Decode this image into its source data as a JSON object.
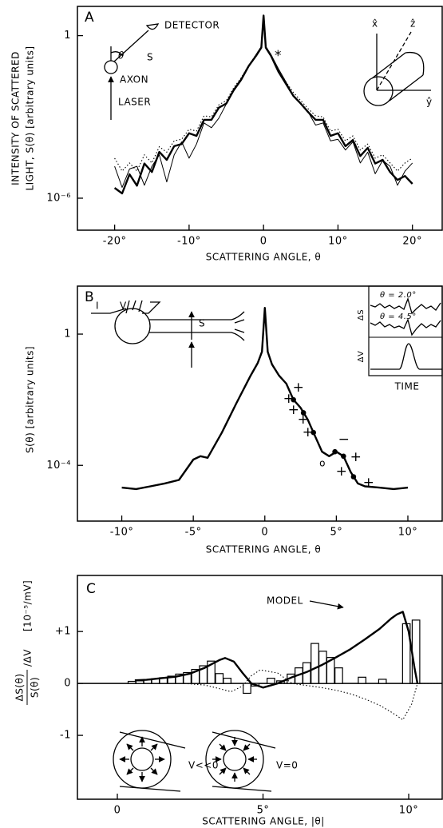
{
  "chart_data": [
    {
      "type": "line",
      "label": "A",
      "xlabel": "SCATTERING ANGLE, θ",
      "ylabel": [
        "INTENSITY OF SCATTERED",
        "LIGHT, S(θ) [arbitrary units]"
      ],
      "annotations": [
        "DETECTOR",
        "θ",
        "S",
        "AXON",
        "LASER",
        "*",
        "x̂",
        "ẑ",
        "ŷ"
      ],
      "log_y": true,
      "xlim": [
        -25,
        24
      ],
      "ylim": [
        6.6e-08,
        12
      ],
      "xticks": [
        {
          "value": -20,
          "label": "-20°"
        },
        {
          "value": -10,
          "label": "-10°"
        },
        0,
        {
          "value": 10,
          "label": "10°"
        },
        {
          "value": 20,
          "label": "20°"
        }
      ],
      "yticks": [
        {
          "value": 1e-06,
          "label": "10⁻⁶"
        },
        1
      ],
      "x": [
        -20,
        -19,
        -18,
        -17,
        -16,
        -15,
        -14,
        -13,
        -12,
        -11,
        -10,
        -9,
        -8,
        -7,
        -6,
        -5,
        -4,
        -3,
        -2,
        -1,
        -0.3,
        0,
        0.3,
        1,
        2,
        3,
        4,
        5,
        6,
        7,
        8,
        9,
        10,
        11,
        12,
        13,
        14,
        15,
        16,
        17,
        18,
        19,
        20
      ],
      "series": [
        {
          "style": "dotted",
          "color": "#000000",
          "values": [
            3e-05,
            1e-05,
            2e-05,
            1e-05,
            4e-05,
            2e-05,
            8e-05,
            5e-05,
            0.00013,
            0.00015,
            0.00035,
            0.0003,
            0.0011,
            0.001,
            0.0028,
            0.004,
            0.012,
            0.028,
            0.08,
            0.2,
            0.4,
            5.5,
            0.4,
            0.2,
            0.055,
            0.02,
            0.008,
            0.004,
            0.002,
            0.0011,
            0.001,
            0.0003,
            0.00035,
            0.00013,
            0.0002,
            6e-05,
            0.0001,
            3e-05,
            4e-05,
            2e-05,
            1e-05,
            2e-05,
            3e-05
          ]
        },
        {
          "style": "thin",
          "color": "#000000",
          "values": [
            1.5e-05,
            2.5e-06,
            1.2e-05,
            1.5e-05,
            3e-06,
            1.5e-05,
            4e-05,
            4e-06,
            4e-05,
            0.00012,
            3e-05,
            0.0001,
            0.0006,
            0.0004,
            0.0009,
            0.003,
            0.009,
            0.022,
            0.07,
            0.2,
            0.4,
            5.5,
            0.4,
            0.2,
            0.06,
            0.02,
            0.006,
            0.003,
            0.0015,
            0.0005,
            0.0006,
            0.00013,
            0.00015,
            6e-05,
            0.00012,
            2e-05,
            5e-05,
            8e-06,
            2.5e-05,
            1.5e-05,
            3e-06,
            1e-05,
            2e-05
          ]
        },
        {
          "style": "thick",
          "color": "#000000",
          "values": [
            2.4e-06,
            1.5e-06,
            7.6e-06,
            2.9e-06,
            1.9e-05,
            9.3e-06,
            5.1e-05,
            2.6e-05,
            8.3e-05,
            0.0001,
            0.00025,
            0.0002,
            0.00078,
            0.00078,
            0.0022,
            0.0031,
            0.01,
            0.024,
            0.075,
            0.18,
            0.36,
            5.5,
            0.36,
            0.18,
            0.047,
            0.017,
            0.006,
            0.0031,
            0.0015,
            0.00078,
            0.00078,
            0.0002,
            0.00025,
            8.3e-05,
            0.00014,
            3.6e-05,
            7.2e-05,
            1.9e-05,
            2.6e-05,
            9.3e-06,
            4.7e-06,
            6.6e-06,
            3.4e-06
          ]
        }
      ]
    },
    {
      "type": "line",
      "label": "B",
      "xlabel": "SCATTERING ANGLE, θ",
      "ylabel": [
        "S(θ) [arbitrary units]"
      ],
      "annotations": [
        "I",
        "V",
        "S",
        "θ = 2.0°",
        "θ = 4.5°",
        "ΔS",
        "ΔV",
        "TIME",
        "+",
        "+",
        "+",
        "+",
        "+",
        "−",
        "o",
        "+",
        "+",
        "+"
      ],
      "log_y": true,
      "xlim": [
        -13.1,
        12.4
      ],
      "ylim": [
        2e-06,
        29
      ],
      "xticks": [
        {
          "value": -10,
          "label": "-10°"
        },
        {
          "value": -5,
          "label": "-5°"
        },
        0,
        {
          "value": 5,
          "label": "5°"
        },
        {
          "value": 10,
          "label": "10°"
        }
      ],
      "yticks": [
        {
          "value": 0.0001,
          "label": "10⁻⁴"
        },
        1
      ],
      "series": [
        {
          "style": "thick",
          "color": "#000000",
          "x": [
            -10,
            -9,
            -8,
            -7,
            -6,
            -5,
            -4.5,
            -4,
            -3,
            -2,
            -1,
            -0.5,
            -0.2,
            0,
            0.2,
            0.5,
            1,
            1.5,
            2,
            2.5,
            3,
            3.5,
            4,
            4.5,
            5,
            5.5,
            6,
            6.5,
            7,
            8,
            9,
            10
          ],
          "values": [
            2.1e-05,
            1.9e-05,
            2.3e-05,
            2.8e-05,
            3.6e-05,
            0.00015,
            0.00019,
            0.00017,
            0.001,
            0.0076,
            0.054,
            0.13,
            0.29,
            6.3,
            0.29,
            0.12,
            0.054,
            0.031,
            0.01,
            0.0057,
            0.0025,
            0.0008,
            0.00026,
            0.00019,
            0.00026,
            0.00019,
            6.3e-05,
            2.8e-05,
            2.3e-05,
            2.1e-05,
            1.9e-05,
            2.1e-05
          ]
        },
        {
          "style": "dots",
          "color": "#000000",
          "x": [
            2,
            2.7,
            3.4,
            4.9,
            5.5,
            6.2
          ],
          "values": [
            0.01,
            0.004,
            0.001,
            0.00026,
            0.00019,
            4.5e-05
          ]
        }
      ]
    },
    {
      "type": "bar",
      "label": "C",
      "xlabel": "SCATTERING ANGLE, |θ|",
      "ylabel": [
        "ΔS(θ)",
        "S(θ)",
        "/ΔV",
        "[10⁻⁵/mV]"
      ],
      "annotations": [
        "MODEL",
        "V<<0",
        "V=0"
      ],
      "xlim": [
        -1.37,
        11.15
      ],
      "ylim": [
        -2.23,
        2.08
      ],
      "xticks": [
        0,
        {
          "value": 5,
          "label": "5°"
        },
        {
          "value": 10,
          "label": "10°"
        }
      ],
      "yticks": [
        -1,
        0,
        {
          "value": 1,
          "label": "+1"
        }
      ],
      "bars": {
        "color": "#ffffff",
        "x": [
          0.5,
          0.77,
          1.04,
          1.31,
          1.58,
          1.86,
          2.13,
          2.4,
          2.68,
          2.95,
          3.22,
          3.5,
          3.77,
          4.45,
          4.73,
          5.27,
          5.6,
          5.96,
          6.23,
          6.5,
          6.78,
          7.05,
          7.32,
          7.6,
          8.4,
          9.1,
          9.92,
          10.25
        ],
        "values": [
          0.04,
          0.05,
          0.07,
          0.09,
          0.11,
          0.14,
          0.18,
          0.21,
          0.27,
          0.34,
          0.43,
          0.19,
          0.1,
          -0.19,
          -0.05,
          0.1,
          0.05,
          0.18,
          0.3,
          0.4,
          0.77,
          0.62,
          0.5,
          0.3,
          0.12,
          0.08,
          1.15,
          1.22
        ]
      },
      "series": [
        {
          "style": "dotted",
          "color": "#000000",
          "x": [
            2.3,
            3,
            3.5,
            3.9,
            4.3,
            4.6,
            4.9,
            5.5,
            6,
            6.5,
            7,
            7.5,
            8,
            8.5,
            9,
            9.4,
            9.8,
            10.1,
            10.3,
            10.6,
            11
          ],
          "values": [
            0,
            -0.03,
            -0.1,
            -0.16,
            -0.05,
            0.15,
            0.26,
            0.2,
            0.0,
            -0.04,
            -0.08,
            -0.13,
            -0.2,
            -0.3,
            -0.42,
            -0.55,
            -0.7,
            -0.4,
            0.0,
            0.0,
            0.0
          ]
        },
        {
          "style": "thick",
          "color": "#000000",
          "x": [
            0.6,
            1,
            1.5,
            2,
            2.5,
            3,
            3.5,
            3.7,
            4,
            4.3,
            4.6,
            5,
            5.5,
            6,
            6.5,
            7,
            7.5,
            8,
            8.5,
            9,
            9.4,
            9.6,
            9.8,
            10,
            10.2,
            10.3
          ],
          "values": [
            0.06,
            0.07,
            0.1,
            0.13,
            0.19,
            0.3,
            0.45,
            0.49,
            0.42,
            0.2,
            0.0,
            -0.08,
            0.0,
            0.12,
            0.22,
            0.35,
            0.5,
            0.66,
            0.85,
            1.05,
            1.25,
            1.33,
            1.38,
            1.0,
            0.3,
            0.0
          ]
        }
      ]
    }
  ]
}
